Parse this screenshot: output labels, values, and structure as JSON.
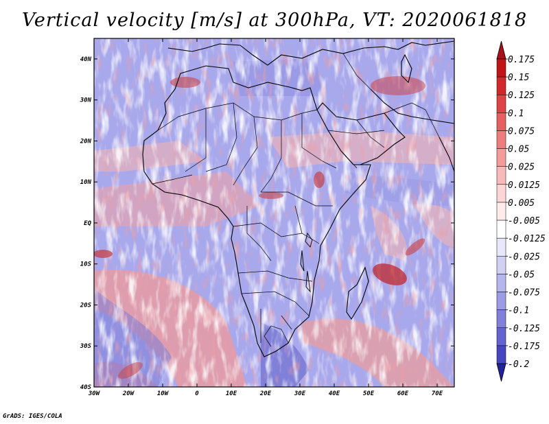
{
  "title": "Vertical velocity [m/s] at 300hPa, VT: 2020061818",
  "credit": "GrADS: IGES/COLA",
  "map": {
    "lon_range": [
      -30,
      75
    ],
    "lat_range": [
      -40,
      45
    ],
    "lon_ticks": [
      {
        "value": -30,
        "label": "30W"
      },
      {
        "value": -20,
        "label": "20W"
      },
      {
        "value": -10,
        "label": "10W"
      },
      {
        "value": 0,
        "label": "0"
      },
      {
        "value": 10,
        "label": "10E"
      },
      {
        "value": 20,
        "label": "20E"
      },
      {
        "value": 30,
        "label": "30E"
      },
      {
        "value": 40,
        "label": "40E"
      },
      {
        "value": 50,
        "label": "50E"
      },
      {
        "value": 60,
        "label": "60E"
      },
      {
        "value": 70,
        "label": "70E"
      }
    ],
    "lat_ticks": [
      {
        "value": 40,
        "label": "40N"
      },
      {
        "value": 30,
        "label": "30N"
      },
      {
        "value": 20,
        "label": "20N"
      },
      {
        "value": 10,
        "label": "10N"
      },
      {
        "value": 0,
        "label": "EQ"
      },
      {
        "value": -10,
        "label": "10S"
      },
      {
        "value": -20,
        "label": "20S"
      },
      {
        "value": -30,
        "label": "30S"
      },
      {
        "value": -40,
        "label": "40S"
      }
    ]
  },
  "colorbar": {
    "levels": [
      {
        "label": "0.175",
        "color": "#c01418"
      },
      {
        "label": "0.15",
        "color": "#d0282c"
      },
      {
        "label": "0.125",
        "color": "#dc4446"
      },
      {
        "label": "0.1",
        "color": "#e66062"
      },
      {
        "label": "0.075",
        "color": "#ee7e7e"
      },
      {
        "label": "0.05",
        "color": "#f49c9a"
      },
      {
        "label": "0.025",
        "color": "#f8bab8"
      },
      {
        "label": "0.0125",
        "color": "#fcd6d4"
      },
      {
        "label": "0.005",
        "color": "#feecea"
      },
      {
        "label": "-0.005",
        "color": "#ffffff"
      },
      {
        "label": "-0.0125",
        "color": "#e8e8fa"
      },
      {
        "label": "-0.025",
        "color": "#d0d0f4"
      },
      {
        "label": "-0.05",
        "color": "#b6b6ee"
      },
      {
        "label": "-0.075",
        "color": "#9c9ce6"
      },
      {
        "label": "-0.1",
        "color": "#8080dc"
      },
      {
        "label": "-0.125",
        "color": "#6464d0"
      },
      {
        "label": "-0.175",
        "color": "#4646c0"
      },
      {
        "label": "-0.2",
        "color": "#2c2ca8"
      }
    ],
    "top_color": "#a8101a",
    "bottom_color": "#22229a"
  }
}
